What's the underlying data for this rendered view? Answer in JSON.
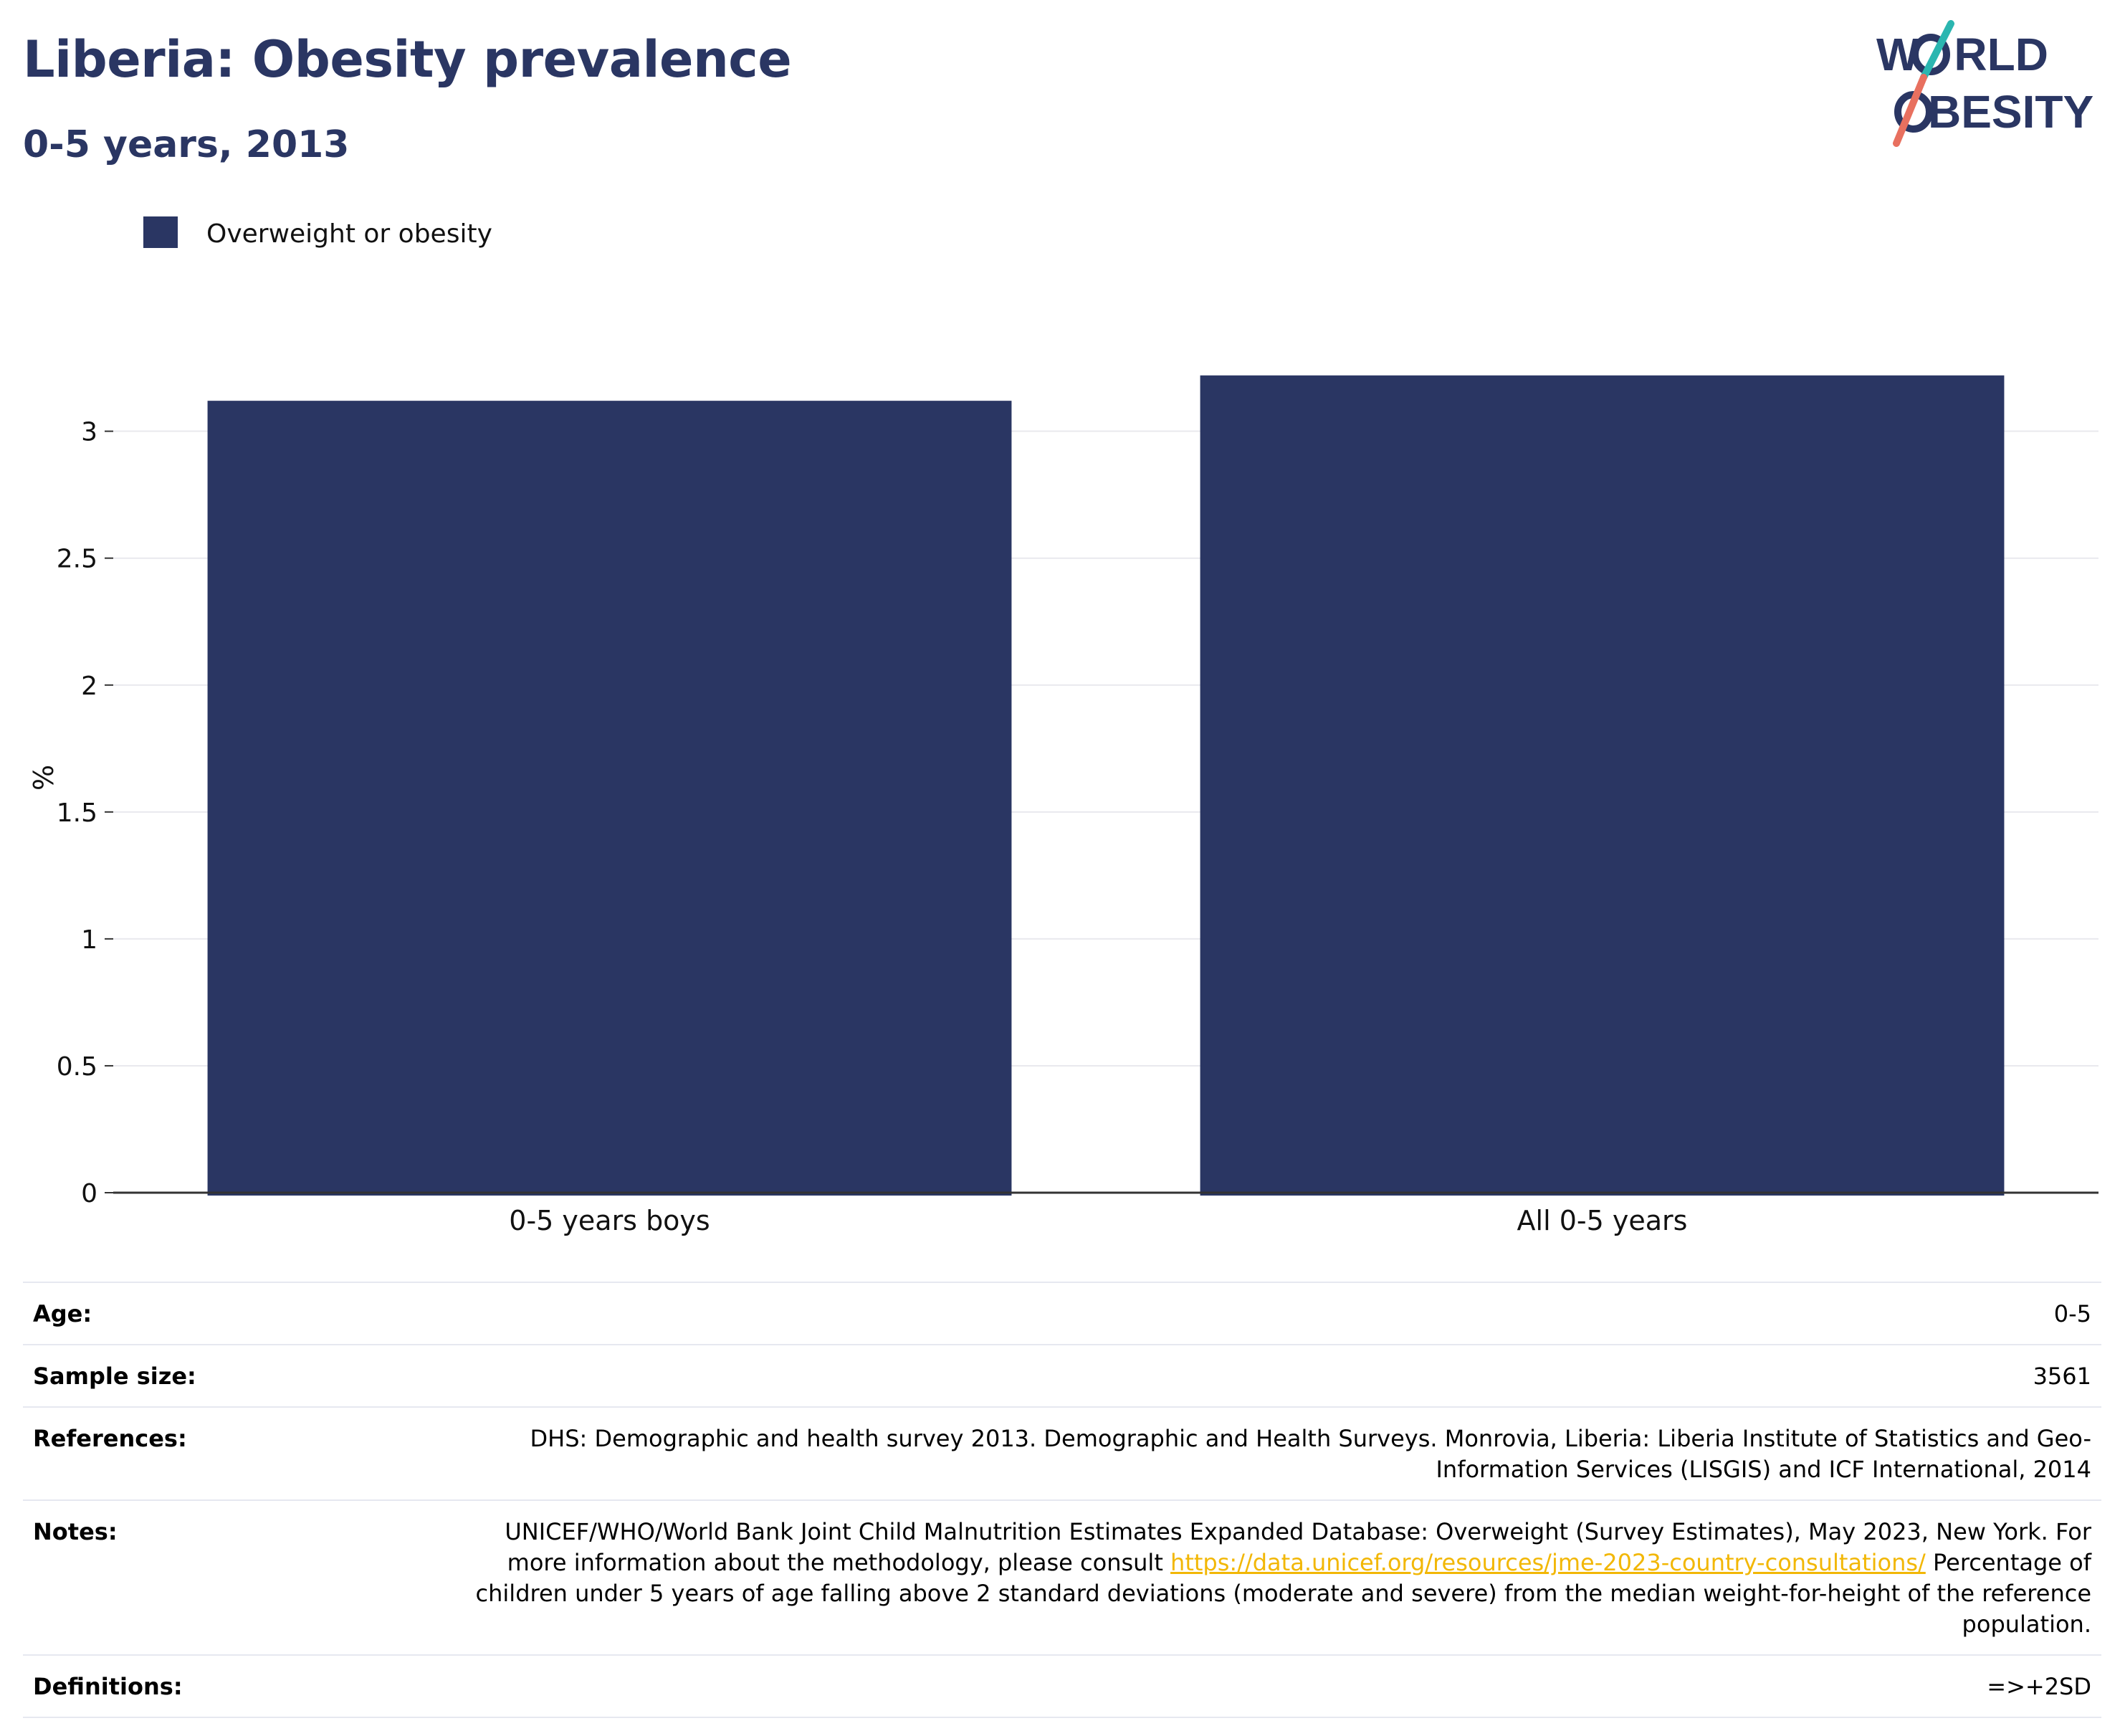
{
  "header": {
    "title": "Liberia: Obesity prevalence",
    "subtitle": "0-5 years, 2013"
  },
  "logo": {
    "line1_pre": "W",
    "line1_post": "RLD",
    "line2_pre": "",
    "line2_post": "BESITY",
    "text_color": "#2a3663",
    "slash_top_color": "#2bb6b0",
    "slash_bottom_color": "#e8705f"
  },
  "chart_data": {
    "type": "bar",
    "categories": [
      "0-5 years boys",
      "All 0-5 years"
    ],
    "series": [
      {
        "name": "Overweight or obesity",
        "values": [
          3.12,
          3.22
        ],
        "color": "#2a3663"
      }
    ],
    "ylabel": "%",
    "xlabel": "",
    "ylim": [
      0,
      3.4
    ],
    "yticks": [
      "0",
      "0.5",
      "1",
      "1.5",
      "2",
      "2.5",
      "3"
    ],
    "grid": true,
    "legend": "top-left"
  },
  "meta": [
    {
      "label": "Age:",
      "value": "0-5"
    },
    {
      "label": "Sample size:",
      "value": "3561"
    },
    {
      "label": "References:",
      "value": "DHS: Demographic and health survey 2013. Demographic and Health Surveys. Monrovia, Liberia: Liberia Institute of Statistics and Geo-Information Services (LISGIS) and ICF International, 2014"
    },
    {
      "label": "Notes:",
      "value_pre": "UNICEF/WHO/World Bank Joint Child Malnutrition Estimates Expanded Database: Overweight (Survey Estimates), May 2023, New York. For more information about the methodology, please consult ",
      "link": "https://data.unicef.org/resources/jme-2023-country-consultations/",
      "value_post": " Percentage of children under 5 years of age falling above 2 standard deviations (moderate and severe) from the median weight-for-height of the reference population."
    },
    {
      "label": "Definitions:",
      "value": "=>+2SD"
    }
  ]
}
